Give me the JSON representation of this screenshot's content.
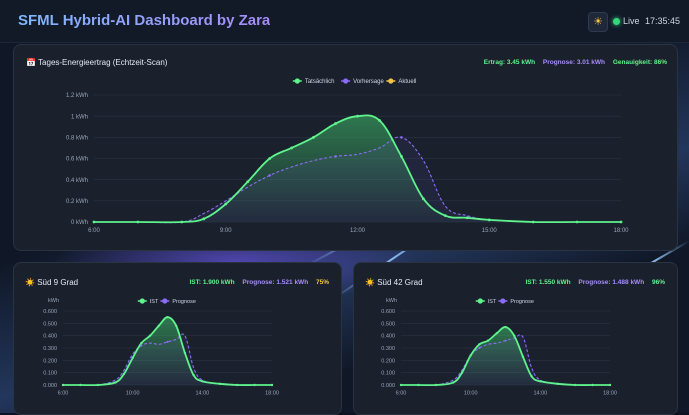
{
  "header": {
    "title": "SFML Hybrid-AI Dashboard by Zara",
    "theme_icon": "sun-icon",
    "live_label": "Live",
    "clock": "17:35:45"
  },
  "main_card": {
    "icon": "calendar-icon",
    "icon_glyph": "📅",
    "title": "Tages-Energieertrag (Echtzeit-Scan)",
    "stats": {
      "ertrag": "Ertrag: 3.45 kWh",
      "prognose": "Prognose: 3.01 kWh",
      "genauigkeit": "Genauigkeit: 86%"
    }
  },
  "panel1": {
    "icon": "sun-icon",
    "icon_glyph": "☀️",
    "title": "Süd 9 Grad",
    "stats": {
      "ist": "IST: 1.900 kWh",
      "prognose": "Prognose: 1.521 kWh",
      "pct": "75%"
    }
  },
  "panel2": {
    "icon": "sun-icon",
    "icon_glyph": "☀️",
    "title": "Süd 42 Grad",
    "stats": {
      "ist": "IST: 1.550 kWh",
      "prognose": "Prognose: 1.488 kWh",
      "pct": "96%"
    }
  },
  "colors": {
    "actual": "#5ef38c",
    "forecast": "#8b6cf6",
    "current": "#f6c341"
  },
  "chart_data": [
    {
      "type": "line",
      "legend": [
        "Tatsächlich",
        "Vorhersage",
        "Aktuell"
      ],
      "legend_position": "top-center",
      "ylim": [
        0,
        1.2
      ],
      "yticks": [
        "0 kWh",
        "0.2 kWh",
        "0.4 kWh",
        "0.6 kWh",
        "0.8 kWh",
        "1 kWh",
        "1.2 kWh"
      ],
      "xlim": [
        6,
        18
      ],
      "xticks": [
        "6:00",
        "9:00",
        "12:00",
        "15:00",
        "18:00"
      ],
      "series": [
        {
          "name": "Tatsächlich",
          "x": [
            6,
            7,
            8,
            8.5,
            9,
            9.5,
            10,
            10.5,
            11,
            11.5,
            12,
            12.5,
            13,
            13.5,
            14,
            14.5,
            15,
            16,
            17,
            18
          ],
          "values": [
            0,
            0,
            0,
            0.03,
            0.17,
            0.38,
            0.6,
            0.7,
            0.8,
            0.93,
            1.0,
            0.96,
            0.62,
            0.22,
            0.06,
            0.04,
            0.02,
            0,
            0,
            0
          ]
        },
        {
          "name": "Vorhersage",
          "x": [
            6,
            7,
            8,
            8.5,
            9,
            9.5,
            10,
            10.5,
            11,
            11.5,
            12,
            12.5,
            13,
            13.5,
            14,
            14.5,
            15,
            16,
            17,
            18
          ],
          "values": [
            0,
            0,
            0,
            0.08,
            0.2,
            0.33,
            0.44,
            0.52,
            0.58,
            0.62,
            0.64,
            0.7,
            0.8,
            0.58,
            0.15,
            0.06,
            0.02,
            0,
            0,
            0
          ]
        }
      ]
    },
    {
      "type": "line",
      "legend": [
        "IST",
        "Prognose"
      ],
      "legend_position": "top-center",
      "ylabel": "kWh",
      "ylim": [
        0,
        0.6
      ],
      "yticks": [
        "0.000",
        "0.100",
        "0.200",
        "0.300",
        "0.400",
        "0.500",
        "0.600"
      ],
      "xlim": [
        6,
        18
      ],
      "xticks": [
        "6:00",
        "10:00",
        "14:00",
        "18:00"
      ],
      "series": [
        {
          "name": "IST",
          "x": [
            6,
            7,
            8,
            9,
            9.5,
            10,
            10.5,
            11,
            11.5,
            12,
            12.5,
            13,
            13.5,
            14,
            15,
            16,
            17,
            18
          ],
          "values": [
            0,
            0,
            0,
            0.02,
            0.09,
            0.22,
            0.34,
            0.4,
            0.48,
            0.55,
            0.48,
            0.26,
            0.08,
            0.03,
            0.01,
            0,
            0,
            0
          ]
        },
        {
          "name": "Prognose",
          "x": [
            6,
            7,
            8,
            9,
            9.5,
            10,
            10.5,
            11,
            11.5,
            12,
            12.5,
            13,
            13.5,
            14,
            15,
            16,
            17,
            18
          ],
          "values": [
            0,
            0,
            0,
            0.04,
            0.12,
            0.25,
            0.32,
            0.34,
            0.33,
            0.35,
            0.37,
            0.4,
            0.14,
            0.04,
            0.01,
            0,
            0,
            0
          ]
        }
      ]
    },
    {
      "type": "line",
      "legend": [
        "IST",
        "Prognose"
      ],
      "legend_position": "top-center",
      "ylabel": "kWh",
      "ylim": [
        0,
        0.6
      ],
      "yticks": [
        "0.000",
        "0.100",
        "0.200",
        "0.300",
        "0.400",
        "0.500",
        "0.600"
      ],
      "xlim": [
        6,
        18
      ],
      "xticks": [
        "6:00",
        "10:00",
        "14:00",
        "18:00"
      ],
      "series": [
        {
          "name": "IST",
          "x": [
            6,
            7,
            8,
            9,
            9.5,
            10,
            10.5,
            11,
            11.5,
            12,
            12.5,
            13,
            13.5,
            14,
            15,
            16,
            17,
            18
          ],
          "values": [
            0,
            0,
            0,
            0.02,
            0.1,
            0.24,
            0.33,
            0.36,
            0.42,
            0.47,
            0.4,
            0.23,
            0.07,
            0.03,
            0.01,
            0,
            0,
            0
          ]
        },
        {
          "name": "Prognose",
          "x": [
            6,
            7,
            8,
            9,
            9.5,
            10,
            10.5,
            11,
            11.5,
            12,
            12.5,
            13,
            13.5,
            14,
            15,
            16,
            17,
            18
          ],
          "values": [
            0,
            0,
            0,
            0.04,
            0.12,
            0.24,
            0.3,
            0.33,
            0.34,
            0.36,
            0.38,
            0.39,
            0.14,
            0.04,
            0.01,
            0,
            0,
            0
          ]
        }
      ]
    }
  ]
}
